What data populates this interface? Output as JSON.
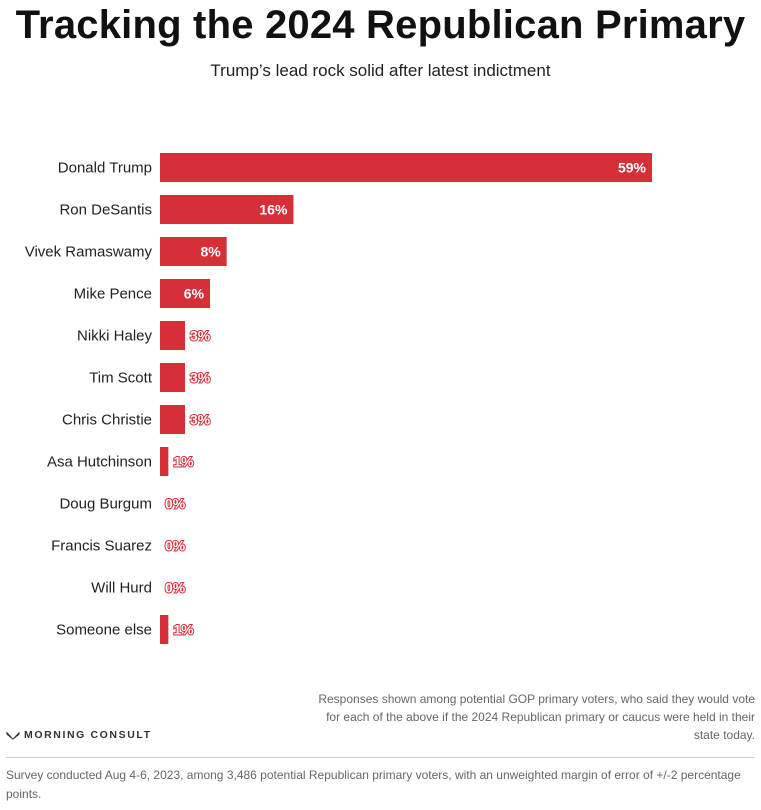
{
  "title": "Tracking the 2024 Republican Primary",
  "subtitle": "Trump’s lead rock solid after latest indictment",
  "chart_data": {
    "type": "bar",
    "orientation": "horizontal",
    "categories": [
      "Donald Trump",
      "Ron DeSantis",
      "Vivek Ramaswamy",
      "Mike Pence",
      "Nikki Haley",
      "Tim Scott",
      "Chris Christie",
      "Asa Hutchinson",
      "Doug Burgum",
      "Francis Suarez",
      "Will Hurd",
      "Someone else"
    ],
    "values": [
      59,
      16,
      8,
      6,
      3,
      3,
      3,
      1,
      0,
      0,
      0,
      1
    ],
    "value_labels": [
      "59%",
      "16%",
      "8%",
      "6%",
      "3%",
      "3%",
      "3%",
      "1%",
      "0%",
      "0%",
      "0%",
      "1%"
    ],
    "unit": "%",
    "xlim": [
      0,
      59
    ],
    "grid": false,
    "bar_color": "#d62f38"
  },
  "note": "Responses shown among potential GOP primary voters, who said they would vote for each of the above if the 2024 Republican primary or caucus were held in their state today.",
  "brand": "MORNING CONSULT",
  "footer": "Survey conducted Aug 4-6, 2023, among 3,486 potential Republican primary voters, with an unweighted margin of error of +/-2 percentage points."
}
